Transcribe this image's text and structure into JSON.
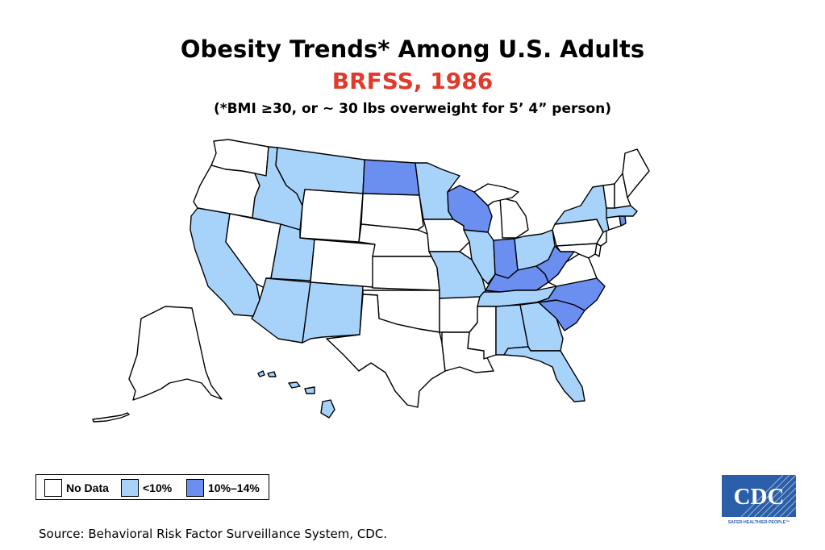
{
  "title": "Obesity Trends* Among U.S. Adults",
  "subtitle": "BRFSS, 1986",
  "note": "(*BMI ≥30, or ~ 30 lbs overweight for 5’ 4” person)",
  "colors": {
    "no_data": "#ffffff",
    "low": "#a7d3fb",
    "mid": "#6a8ff0",
    "subtitle": "#e03a2c",
    "logo": "#2a5ea8"
  },
  "legend": [
    {
      "label": "No Data",
      "category": "no_data"
    },
    {
      "label": "<10%",
      "category": "low"
    },
    {
      "label": "10%–14%",
      "category": "mid"
    }
  ],
  "states": {
    "WA": "no_data",
    "OR": "no_data",
    "CA": "low",
    "NV": "no_data",
    "ID": "low",
    "MT": "low",
    "WY": "no_data",
    "UT": "low",
    "AZ": "low",
    "CO": "no_data",
    "NM": "low",
    "ND": "mid",
    "SD": "no_data",
    "NE": "no_data",
    "KS": "no_data",
    "OK": "no_data",
    "TX": "no_data",
    "MN": "low",
    "IA": "no_data",
    "MO": "low",
    "AR": "no_data",
    "LA": "no_data",
    "WI": "mid",
    "IL": "low",
    "MI": "no_data",
    "IN": "mid",
    "OH": "low",
    "KY": "mid",
    "TN": "low",
    "MS": "no_data",
    "AL": "low",
    "GA": "low",
    "FL": "low",
    "SC": "mid",
    "NC": "mid",
    "VA": "no_data",
    "WV": "mid",
    "PA": "no_data",
    "NY": "low",
    "VT": "no_data",
    "NH": "no_data",
    "ME": "no_data",
    "MA": "low",
    "RI": "mid",
    "CT": "no_data",
    "NJ": "no_data",
    "DE": "no_data",
    "MD": "no_data",
    "AK": "no_data",
    "HI": "low"
  },
  "source": "Source: Behavioral Risk Factor Surveillance System, CDC.",
  "logo": {
    "text": "CDC",
    "tagline": "SAFER·HEALTHIER·PEOPLE™"
  }
}
